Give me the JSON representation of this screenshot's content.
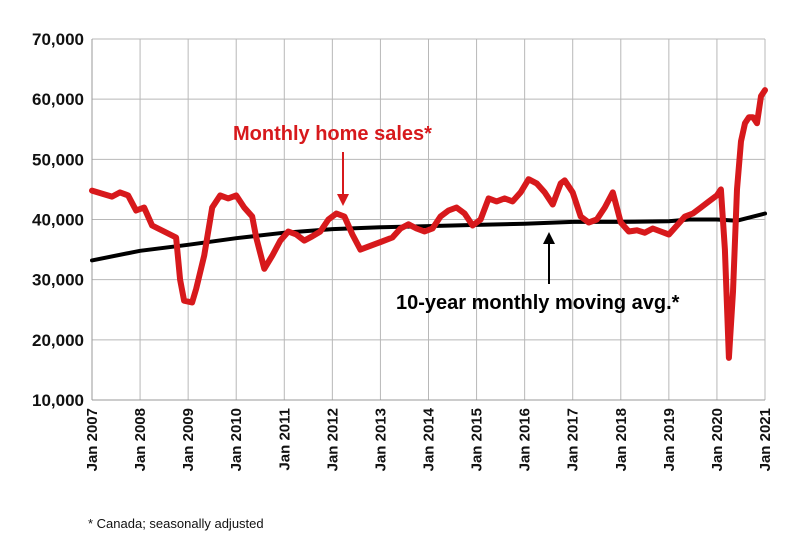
{
  "chart_data": {
    "type": "line",
    "title": "",
    "xlabel": "",
    "ylabel": "",
    "ylim": [
      10000,
      70000
    ],
    "y_ticks": [
      10000,
      20000,
      30000,
      40000,
      50000,
      60000,
      70000
    ],
    "y_tick_labels": [
      "10,000",
      "20,000",
      "30,000",
      "40,000",
      "50,000",
      "60,000",
      "70,000"
    ],
    "x_tick_labels": [
      "Jan 2007",
      "Jan 2008",
      "Jan 2009",
      "Jan 2010",
      "Jan 2011",
      "Jan 2012",
      "Jan 2013",
      "Jan 2014",
      "Jan 2015",
      "Jan 2016",
      "Jan 2017",
      "Jan 2018",
      "Jan 2019",
      "Jan 2020",
      "Jan 2021"
    ],
    "x_range": [
      "2007-01",
      "2021-01"
    ],
    "grid": true,
    "colors": {
      "sales": "#d7191c",
      "average": "#000000",
      "grid": "#b8b8b8"
    },
    "series": [
      {
        "name": "Monthly home sales*",
        "points": [
          [
            "2007-01",
            44800
          ],
          [
            "2007-04",
            44200
          ],
          [
            "2007-06",
            43800
          ],
          [
            "2007-08",
            44500
          ],
          [
            "2007-10",
            44000
          ],
          [
            "2007-12",
            41500
          ],
          [
            "2008-02",
            42000
          ],
          [
            "2008-04",
            39000
          ],
          [
            "2008-07",
            38000
          ],
          [
            "2008-10",
            37000
          ],
          [
            "2008-11",
            30000
          ],
          [
            "2008-12",
            26500
          ],
          [
            "2009-02",
            26200
          ],
          [
            "2009-03",
            28500
          ],
          [
            "2009-05",
            34000
          ],
          [
            "2009-07",
            42000
          ],
          [
            "2009-09",
            44000
          ],
          [
            "2009-11",
            43500
          ],
          [
            "2010-01",
            44000
          ],
          [
            "2010-03",
            42000
          ],
          [
            "2010-05",
            40500
          ],
          [
            "2010-06",
            37000
          ],
          [
            "2010-08",
            31800
          ],
          [
            "2010-10",
            34000
          ],
          [
            "2010-12",
            36500
          ],
          [
            "2011-02",
            38000
          ],
          [
            "2011-04",
            37500
          ],
          [
            "2011-06",
            36500
          ],
          [
            "2011-08",
            37200
          ],
          [
            "2011-10",
            38000
          ],
          [
            "2011-12",
            40000
          ],
          [
            "2012-02",
            41000
          ],
          [
            "2012-04",
            40500
          ],
          [
            "2012-06",
            37500
          ],
          [
            "2012-08",
            35000
          ],
          [
            "2012-10",
            35500
          ],
          [
            "2012-12",
            36000
          ],
          [
            "2013-02",
            36500
          ],
          [
            "2013-04",
            37000
          ],
          [
            "2013-06",
            38500
          ],
          [
            "2013-08",
            39200
          ],
          [
            "2013-10",
            38500
          ],
          [
            "2013-12",
            38000
          ],
          [
            "2014-02",
            38500
          ],
          [
            "2014-04",
            40500
          ],
          [
            "2014-06",
            41500
          ],
          [
            "2014-08",
            42000
          ],
          [
            "2014-10",
            41000
          ],
          [
            "2014-12",
            39000
          ],
          [
            "2015-02",
            40000
          ],
          [
            "2015-04",
            43500
          ],
          [
            "2015-06",
            43000
          ],
          [
            "2015-08",
            43500
          ],
          [
            "2015-10",
            43000
          ],
          [
            "2015-12",
            44500
          ],
          [
            "2016-02",
            46700
          ],
          [
            "2016-04",
            46000
          ],
          [
            "2016-06",
            44500
          ],
          [
            "2016-08",
            42500
          ],
          [
            "2016-10",
            46000
          ],
          [
            "2016-11",
            46500
          ],
          [
            "2017-01",
            44500
          ],
          [
            "2017-03",
            40500
          ],
          [
            "2017-05",
            39500
          ],
          [
            "2017-07",
            40000
          ],
          [
            "2017-09",
            42000
          ],
          [
            "2017-11",
            44500
          ],
          [
            "2018-01",
            39500
          ],
          [
            "2018-03",
            38000
          ],
          [
            "2018-05",
            38200
          ],
          [
            "2018-07",
            37800
          ],
          [
            "2018-09",
            38500
          ],
          [
            "2018-11",
            38000
          ],
          [
            "2019-01",
            37500
          ],
          [
            "2019-03",
            39000
          ],
          [
            "2019-05",
            40500
          ],
          [
            "2019-07",
            41000
          ],
          [
            "2019-09",
            42000
          ],
          [
            "2019-11",
            43000
          ],
          [
            "2020-01",
            44000
          ],
          [
            "2020-02",
            45000
          ],
          [
            "2020-03",
            35000
          ],
          [
            "2020-04",
            17000
          ],
          [
            "2020-05",
            28000
          ],
          [
            "2020-06",
            45000
          ],
          [
            "2020-07",
            53000
          ],
          [
            "2020-08",
            56000
          ],
          [
            "2020-09",
            57000
          ],
          [
            "2020-10",
            57000
          ],
          [
            "2020-11",
            56000
          ],
          [
            "2020-12",
            60500
          ],
          [
            "2021-01",
            61500
          ]
        ]
      },
      {
        "name": "10-year monthly moving avg.*",
        "points": [
          [
            "2007-01",
            33200
          ],
          [
            "2008-01",
            34800
          ],
          [
            "2009-01",
            35800
          ],
          [
            "2010-01",
            36900
          ],
          [
            "2011-01",
            37800
          ],
          [
            "2012-01",
            38400
          ],
          [
            "2013-01",
            38700
          ],
          [
            "2014-01",
            38900
          ],
          [
            "2015-01",
            39100
          ],
          [
            "2016-01",
            39300
          ],
          [
            "2017-01",
            39600
          ],
          [
            "2018-01",
            39600
          ],
          [
            "2019-01",
            39700
          ],
          [
            "2019-06",
            40000
          ],
          [
            "2020-01",
            40000
          ],
          [
            "2020-06",
            39800
          ],
          [
            "2021-01",
            41000
          ]
        ]
      }
    ],
    "annotations": [
      {
        "text": "Monthly home sales*",
        "color": "#d7191c",
        "points_to": [
          "2012-04",
          41000
        ]
      },
      {
        "text": "10-year monthly moving avg.*",
        "color": "#000000",
        "points_to": [
          "2016-08",
          39400
        ]
      }
    ],
    "footnote": "* Canada; seasonally adjusted"
  }
}
